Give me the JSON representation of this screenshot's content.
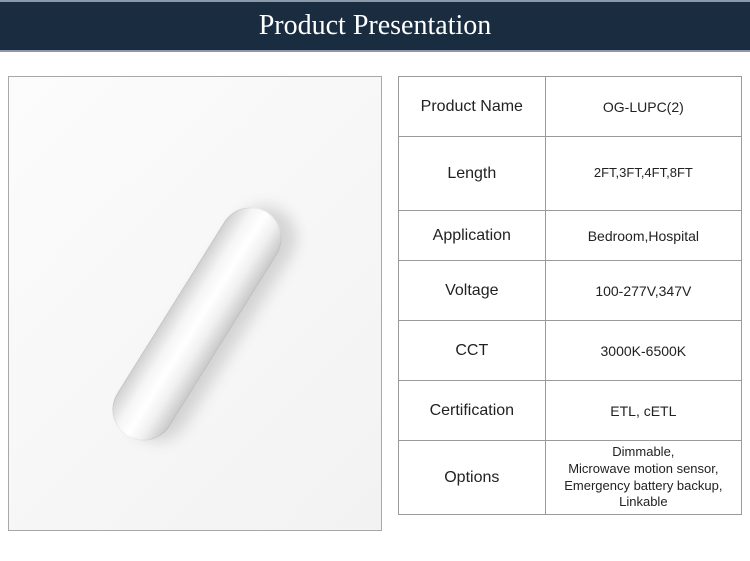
{
  "header": {
    "title": "Product Presentation"
  },
  "colors": {
    "header_bg": "#1a2c40",
    "header_text": "#ffffff",
    "border": "#9a9a9a"
  },
  "specs": {
    "rows": [
      {
        "label": "Product Name",
        "value": "OG-LUPC(2)"
      },
      {
        "label": "Length",
        "value": "2FT,3FT,4FT,8FT"
      },
      {
        "label": "Application",
        "value": "Bedroom,Hospital"
      },
      {
        "label": "Voltage",
        "value": "100-277V,347V"
      },
      {
        "label": "CCT",
        "value": "3000K-6500K"
      },
      {
        "label": "Certification",
        "value": "ETL, cETL"
      },
      {
        "label": "Options",
        "value": "Dimmable,\nMicrowave motion sensor,\nEmergency battery backup,\nLinkable"
      }
    ]
  }
}
